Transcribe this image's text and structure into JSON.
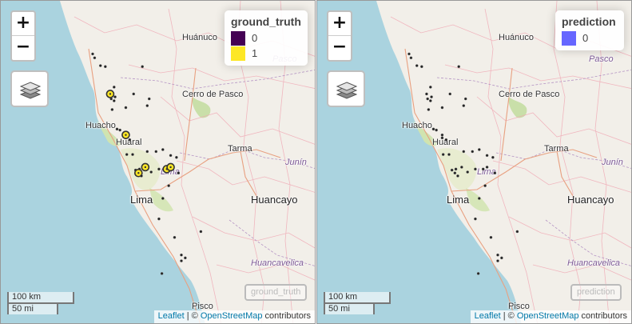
{
  "zoom": {
    "in_label": "+",
    "out_label": "−"
  },
  "places": {
    "huanuco": "Huánuco",
    "pasco": "Pasco",
    "cerro_de_pasco": "Cerro de Pasco",
    "huacho": "Huacho",
    "huaral": "Huaral",
    "tarma": "Tarma",
    "junin": "Junín",
    "lima_region": "Lima",
    "lima_city": "Lima",
    "huancayo": "Huancayo",
    "huancavelica": "Huancavelica",
    "pisco": "Pisco"
  },
  "left_map": {
    "legend_title": "ground_truth",
    "legend_items": [
      {
        "label": "0",
        "color": "#440154"
      },
      {
        "label": "1",
        "color": "#FDE725"
      }
    ],
    "ghost_label": "ground_truth"
  },
  "right_map": {
    "legend_title": "prediction",
    "legend_items": [
      {
        "label": "0",
        "color": "#6666FF"
      }
    ],
    "ghost_label": "prediction"
  },
  "scale": {
    "km": "100 km",
    "mi": "50 mi"
  },
  "attribution": {
    "leaflet": "Leaflet",
    "sep": " | © ",
    "osm": "OpenStreetMap",
    "suffix": " contributors"
  },
  "points": [
    {
      "lon": -77.44,
      "lat": -10.66,
      "gt": 0
    },
    {
      "lon": -77.42,
      "lat": -10.7,
      "gt": 0
    },
    {
      "lon": -77.36,
      "lat": -10.78,
      "gt": 0
    },
    {
      "lon": -77.31,
      "lat": -10.79,
      "gt": 0
    },
    {
      "lon": -76.93,
      "lat": -10.79,
      "gt": 0
    },
    {
      "lon": -77.22,
      "lat": -11.0,
      "gt": 0
    },
    {
      "lon": -77.21,
      "lat": -11.1,
      "gt": 0
    },
    {
      "lon": -77.02,
      "lat": -11.07,
      "gt": 0
    },
    {
      "lon": -77.26,
      "lat": -11.07,
      "gt": 1
    },
    {
      "lon": -77.25,
      "lat": -11.12,
      "gt": 0
    },
    {
      "lon": -77.22,
      "lat": -11.14,
      "gt": 0
    },
    {
      "lon": -77.24,
      "lat": -11.23,
      "gt": 0
    },
    {
      "lon": -77.1,
      "lat": -11.21,
      "gt": 0
    },
    {
      "lon": -76.88,
      "lat": -11.19,
      "gt": 0
    },
    {
      "lon": -76.86,
      "lat": -11.12,
      "gt": 0
    },
    {
      "lon": -77.19,
      "lat": -11.43,
      "gt": 0
    },
    {
      "lon": -77.16,
      "lat": -11.44,
      "gt": 0
    },
    {
      "lon": -77.1,
      "lat": -11.52,
      "gt": 0
    },
    {
      "lon": -77.1,
      "lat": -11.49,
      "gt": 1
    },
    {
      "lon": -77.06,
      "lat": -11.54,
      "gt": 0
    },
    {
      "lon": -77.09,
      "lat": -11.69,
      "gt": 0
    },
    {
      "lon": -77.03,
      "lat": -11.69,
      "gt": 0
    },
    {
      "lon": -76.88,
      "lat": -11.66,
      "gt": 0
    },
    {
      "lon": -76.79,
      "lat": -11.66,
      "gt": 0
    },
    {
      "lon": -76.72,
      "lat": -11.64,
      "gt": 0
    },
    {
      "lon": -76.64,
      "lat": -11.7,
      "gt": 0
    },
    {
      "lon": -76.58,
      "lat": -11.72,
      "gt": 0
    },
    {
      "lon": -76.9,
      "lat": -11.82,
      "gt": 1
    },
    {
      "lon": -76.96,
      "lat": -11.84,
      "gt": 0
    },
    {
      "lon": -77.0,
      "lat": -11.85,
      "gt": 0
    },
    {
      "lon": -76.97,
      "lat": -11.88,
      "gt": 1
    },
    {
      "lon": -76.94,
      "lat": -11.91,
      "gt": 0
    },
    {
      "lon": -76.84,
      "lat": -11.87,
      "gt": 0
    },
    {
      "lon": -76.76,
      "lat": -11.84,
      "gt": 0
    },
    {
      "lon": -76.68,
      "lat": -11.84,
      "gt": 1
    },
    {
      "lon": -76.64,
      "lat": -11.82,
      "gt": 1
    },
    {
      "lon": -76.56,
      "lat": -11.88,
      "gt": 0
    },
    {
      "lon": -76.66,
      "lat": -12.01,
      "gt": 0
    },
    {
      "lon": -76.72,
      "lat": -12.14,
      "gt": 0
    },
    {
      "lon": -76.76,
      "lat": -12.35,
      "gt": 0
    },
    {
      "lon": -76.6,
      "lat": -12.54,
      "gt": 0
    },
    {
      "lon": -76.53,
      "lat": -12.72,
      "gt": 0
    },
    {
      "lon": -76.49,
      "lat": -12.75,
      "gt": 0
    },
    {
      "lon": -76.53,
      "lat": -12.78,
      "gt": 0
    },
    {
      "lon": -76.73,
      "lat": -12.91,
      "gt": 0
    },
    {
      "lon": -76.33,
      "lat": -12.48,
      "gt": 0
    }
  ]
}
